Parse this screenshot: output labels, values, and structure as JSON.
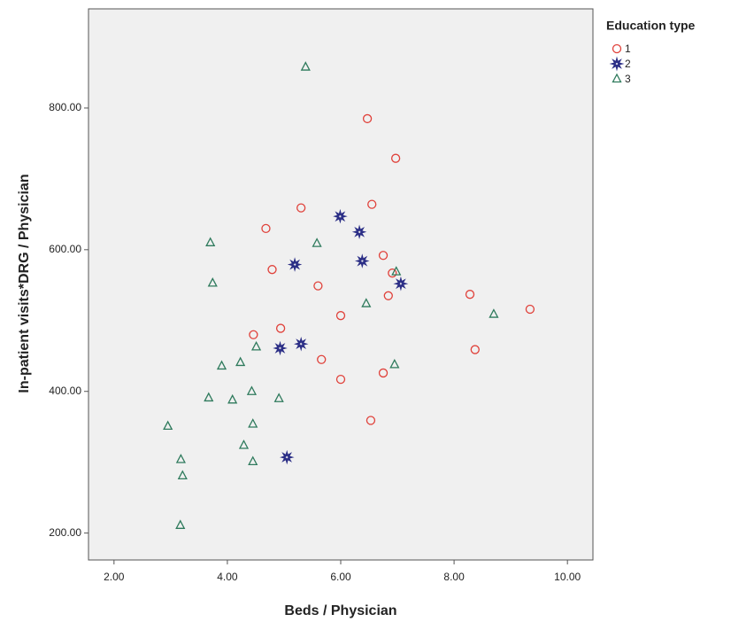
{
  "chart_data": {
    "type": "scatter",
    "x_label": "Beds / Physician",
    "y_label": "In-patient visits*DRG / Physician",
    "legend_title": "Education type",
    "legend_position": "right",
    "xlim": [
      1.55,
      10.45
    ],
    "ylim": [
      162,
      940
    ],
    "xticks": [
      {
        "value": 2,
        "label": "2.00"
      },
      {
        "value": 4,
        "label": "4.00"
      },
      {
        "value": 6,
        "label": "6.00"
      },
      {
        "value": 8,
        "label": "8.00"
      },
      {
        "value": 10,
        "label": "10.00"
      }
    ],
    "yticks": [
      {
        "value": 200,
        "label": "200.00"
      },
      {
        "value": 400,
        "label": "400.00"
      },
      {
        "value": 600,
        "label": "600.00"
      },
      {
        "value": 800,
        "label": "800.00"
      }
    ],
    "series": [
      {
        "name": "1",
        "color": "#e0413a",
        "marker": "circle",
        "x": [
          6.47,
          6.97,
          5.3,
          6.55,
          4.68,
          6.75,
          4.79,
          6.91,
          5.6,
          6.84,
          8.28,
          9.34,
          6.0,
          4.94,
          4.46,
          5.66,
          6.0,
          6.75,
          8.37,
          6.53
        ],
        "values": [
          785,
          729,
          659,
          664,
          630,
          592,
          572,
          567,
          549,
          535,
          537,
          516,
          507,
          489,
          480,
          445,
          417,
          426,
          459,
          359
        ]
      },
      {
        "name": "2",
        "color": "#2b2e86",
        "marker": "star",
        "x": [
          5.99,
          6.33,
          5.19,
          6.38,
          7.06,
          5.3,
          4.93,
          5.05
        ],
        "values": [
          647,
          625,
          579,
          584,
          552,
          467,
          461,
          307
        ]
      },
      {
        "name": "3",
        "color": "#2e7a5c",
        "marker": "triangle",
        "x": [
          5.38,
          3.7,
          3.74,
          5.58,
          6.98,
          6.45,
          8.7,
          4.51,
          3.9,
          4.23,
          4.43,
          3.67,
          4.09,
          4.91,
          6.95,
          2.95,
          4.45,
          4.29,
          3.18,
          4.45,
          3.21,
          3.17
        ],
        "values": [
          858,
          610,
          553,
          609,
          569,
          524,
          509,
          463,
          436,
          441,
          400,
          391,
          388,
          390,
          438,
          351,
          354,
          324,
          304,
          301,
          281,
          211
        ]
      }
    ]
  }
}
